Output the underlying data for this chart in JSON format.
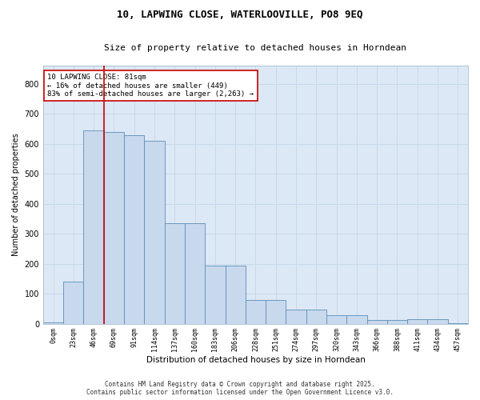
{
  "title_line1": "10, LAPWING CLOSE, WATERLOOVILLE, PO8 9EQ",
  "title_line2": "Size of property relative to detached houses in Horndean",
  "xlabel": "Distribution of detached houses by size in Horndean",
  "ylabel": "Number of detached properties",
  "bin_labels": [
    "0sqm",
    "23sqm",
    "46sqm",
    "69sqm",
    "91sqm",
    "114sqm",
    "137sqm",
    "160sqm",
    "183sqm",
    "206sqm",
    "228sqm",
    "251sqm",
    "274sqm",
    "297sqm",
    "320sqm",
    "343sqm",
    "366sqm",
    "388sqm",
    "411sqm",
    "434sqm",
    "457sqm"
  ],
  "bar_heights": [
    5,
    140,
    645,
    640,
    630,
    610,
    335,
    335,
    195,
    195,
    80,
    80,
    48,
    48,
    27,
    27,
    12,
    12,
    15,
    15,
    2
  ],
  "bar_color": "#c8d9ee",
  "bar_edge_color": "#5b8db8",
  "vline_color": "#cc0000",
  "vline_x_index": 3,
  "annotation_text": "10 LAPWING CLOSE: 81sqm\n← 16% of detached houses are smaller (449)\n83% of semi-detached houses are larger (2,263) →",
  "annotation_box_color": "#ffffff",
  "annotation_box_edge": "#cc0000",
  "ylim": [
    0,
    860
  ],
  "yticks": [
    0,
    100,
    200,
    300,
    400,
    500,
    600,
    700,
    800
  ],
  "grid_color": "#c8d9ee",
  "background_color": "#dce8f5",
  "footer_line1": "Contains HM Land Registry data © Crown copyright and database right 2025.",
  "footer_line2": "Contains public sector information licensed under the Open Government Licence v3.0.",
  "title_fontsize": 9,
  "subtitle_fontsize": 8,
  "annotation_fontsize": 6.5,
  "footer_fontsize": 5.5,
  "ylabel_fontsize": 7,
  "xlabel_fontsize": 7.5,
  "tick_fontsize": 6,
  "ytick_fontsize": 7
}
